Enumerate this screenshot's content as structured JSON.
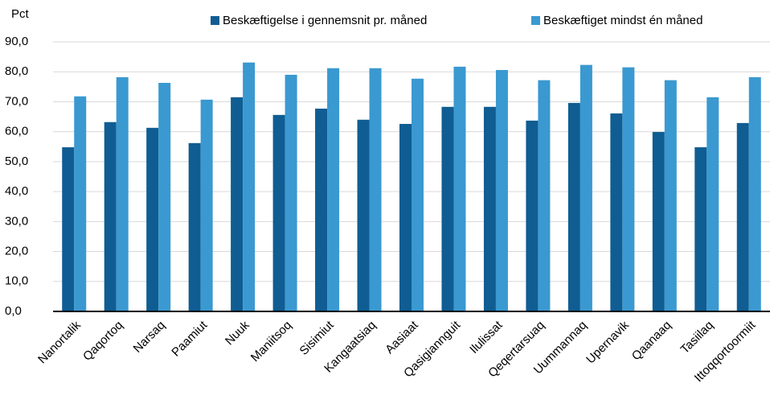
{
  "chart_data": {
    "type": "bar",
    "y_label": "Pct",
    "categories": [
      "Nanortalik",
      "Qaqortoq",
      "Narsaq",
      "Paamiut",
      "Nuuk",
      "Maniitsoq",
      "Sisimiut",
      "Kangaatsiaq",
      "Aasiaat",
      "Qasigiannguit",
      "Ilulissat",
      "Qeqertarsuaq",
      "Uummannaq",
      "Upernavik",
      "Qaanaaq",
      "Tasiilaq",
      "Ittoqqortoormiit"
    ],
    "series": [
      {
        "name": "Beskæftigelse i gennemsnit pr. måned",
        "color": "#0f5d92",
        "values": [
          54.8,
          63.2,
          61.3,
          56.2,
          71.5,
          65.6,
          67.7,
          64.0,
          62.6,
          68.3,
          68.3,
          63.7,
          69.6,
          66.1,
          59.9,
          54.8,
          62.9
        ]
      },
      {
        "name": "Beskæftiget mindst én måned",
        "color": "#3a99d0",
        "values": [
          71.8,
          78.2,
          76.3,
          70.7,
          83.1,
          79.0,
          81.2,
          81.2,
          77.7,
          81.7,
          80.6,
          77.2,
          82.3,
          81.5,
          77.2,
          71.5,
          78.2
        ]
      }
    ],
    "ylim": [
      0,
      90
    ],
    "yticks": [
      {
        "value": 0,
        "label": "0,0"
      },
      {
        "value": 10,
        "label": "10,0"
      },
      {
        "value": 20,
        "label": "20,0"
      },
      {
        "value": 30,
        "label": "30,0"
      },
      {
        "value": 40,
        "label": "40,0"
      },
      {
        "value": 50,
        "label": "50,0"
      },
      {
        "value": 60,
        "label": "60,0"
      },
      {
        "value": 70,
        "label": "70,0"
      },
      {
        "value": 80,
        "label": "80,0"
      },
      {
        "value": 90,
        "label": "90,0"
      }
    ],
    "grid": true,
    "legend": "top"
  }
}
